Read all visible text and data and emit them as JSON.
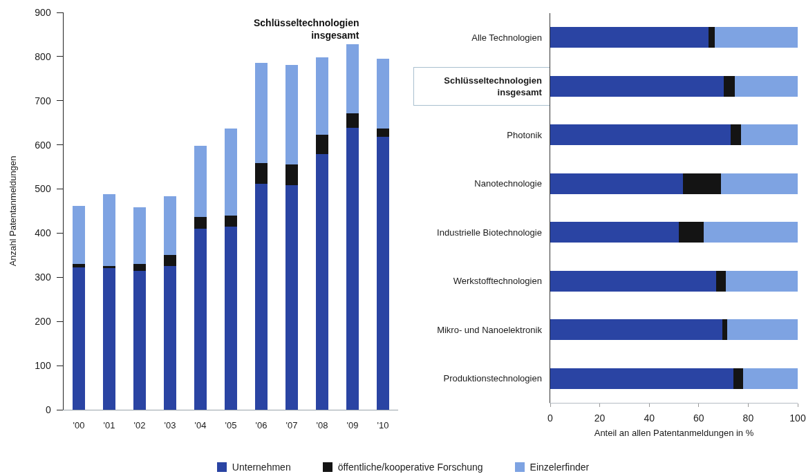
{
  "chart_data": [
    {
      "type": "bar",
      "title": "Schlüsseltechnologien\ninsgesamt",
      "ylabel": "Anzahl Patentanmeldungen",
      "stacked": true,
      "legend": "bottom",
      "categories": [
        "'00",
        "'01",
        "'02",
        "'03",
        "'04",
        "'05",
        "'06",
        "'07",
        "'08",
        "'09",
        "'10"
      ],
      "series": [
        {
          "name": "Unternehmen",
          "color": "#2a44a3",
          "values": [
            322,
            321,
            315,
            326,
            410,
            415,
            512,
            509,
            579,
            639,
            618
          ]
        },
        {
          "name": "öffentliche/kooperative Forschung",
          "color": "#141414",
          "values": [
            8,
            4,
            15,
            24,
            27,
            25,
            47,
            47,
            44,
            32,
            19
          ]
        },
        {
          "name": "Einzelerfinder",
          "color": "#7ea3e2",
          "values": [
            132,
            163,
            128,
            134,
            161,
            197,
            227,
            225,
            175,
            157,
            158
          ]
        }
      ],
      "ylim": [
        0,
        900
      ],
      "yticks": [
        0,
        100,
        200,
        300,
        400,
        500,
        600,
        700,
        800,
        900
      ]
    },
    {
      "type": "bar",
      "orientation": "horizontal",
      "stacked": true,
      "xlabel": "Anteil an allen Patentanmeldungen in %",
      "categories": [
        "Alle Technologien",
        "Schlüsseltechnologien\ninsgesamt",
        "Photonik",
        "Nanotechnologie",
        "Industrielle Biotechnologie",
        "Werkstofftechnologien",
        "Mikro- und Nanoelektronik",
        "Produktionstechnologien"
      ],
      "series": [
        {
          "name": "Unternehmen",
          "color": "#2a44a3",
          "values": [
            64,
            70,
            73,
            53.5,
            52,
            67,
            69.5,
            74
          ]
        },
        {
          "name": "öffentliche/kooperative Forschung",
          "color": "#141414",
          "values": [
            2.5,
            4.5,
            4,
            15.5,
            10,
            4,
            2,
            4
          ]
        },
        {
          "name": "Einzelerfinder",
          "color": "#7ea3e2",
          "values": [
            33.5,
            25.5,
            23,
            31,
            38,
            29,
            28.5,
            22
          ]
        }
      ],
      "xlim": [
        0,
        100
      ],
      "xticks": [
        0,
        20,
        40,
        60,
        80,
        100
      ]
    }
  ]
}
